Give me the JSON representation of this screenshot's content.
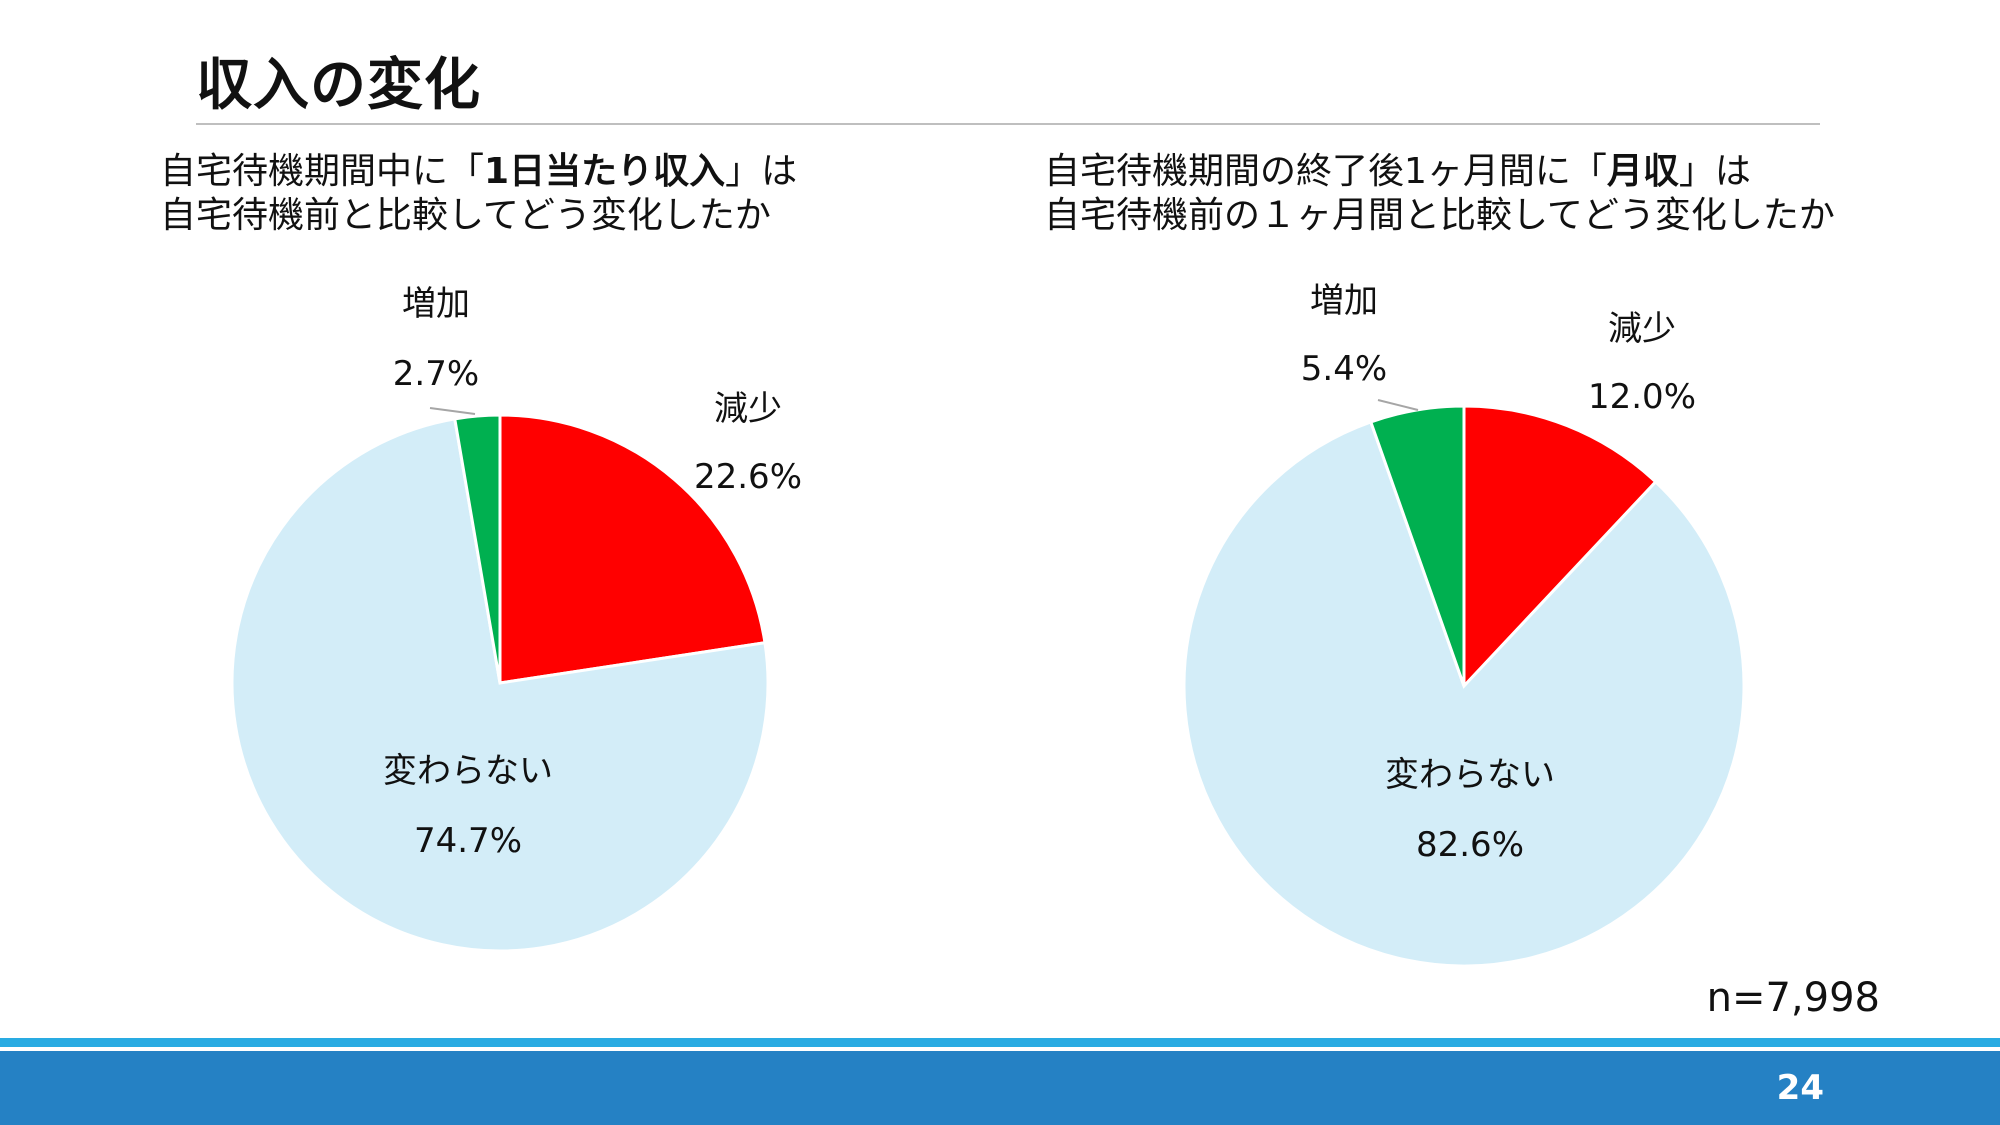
{
  "page": {
    "title": "収入の変化",
    "sample_size": "n=7,998",
    "page_number": "24"
  },
  "left_subtitle": {
    "line1_pre": "自宅待機期間中に「",
    "line1_bold": "1日当たり収入",
    "line1_post": "」は",
    "line2": "自宅待機前と比較してどう変化したか"
  },
  "right_subtitle": {
    "line1_pre": "自宅待機期間の終了後1ヶ月間に「",
    "line1_bold": "月収",
    "line1_post": "」は",
    "line2": "自宅待機前の１ヶ月間と比較してどう変化したか"
  },
  "chart_data": [
    {
      "type": "pie",
      "start": "12 o'clock, clockwise",
      "slices": [
        {
          "label": "減少",
          "value": 22.6,
          "value_label": "22.6%",
          "color": "#ff0000"
        },
        {
          "label": "変わらない",
          "value": 74.7,
          "value_label": "74.7%",
          "color": "#d3edf8"
        },
        {
          "label": "増加",
          "value": 2.7,
          "value_label": "2.7%",
          "color": "#00b050"
        }
      ]
    },
    {
      "type": "pie",
      "start": "12 o'clock, clockwise",
      "slices": [
        {
          "label": "減少",
          "value": 12.0,
          "value_label": "12.0%",
          "color": "#ff0000"
        },
        {
          "label": "変わらない",
          "value": 82.6,
          "value_label": "82.6%",
          "color": "#d3edf8"
        },
        {
          "label": "増加",
          "value": 5.4,
          "value_label": "5.4%",
          "color": "#00b050"
        }
      ]
    }
  ]
}
